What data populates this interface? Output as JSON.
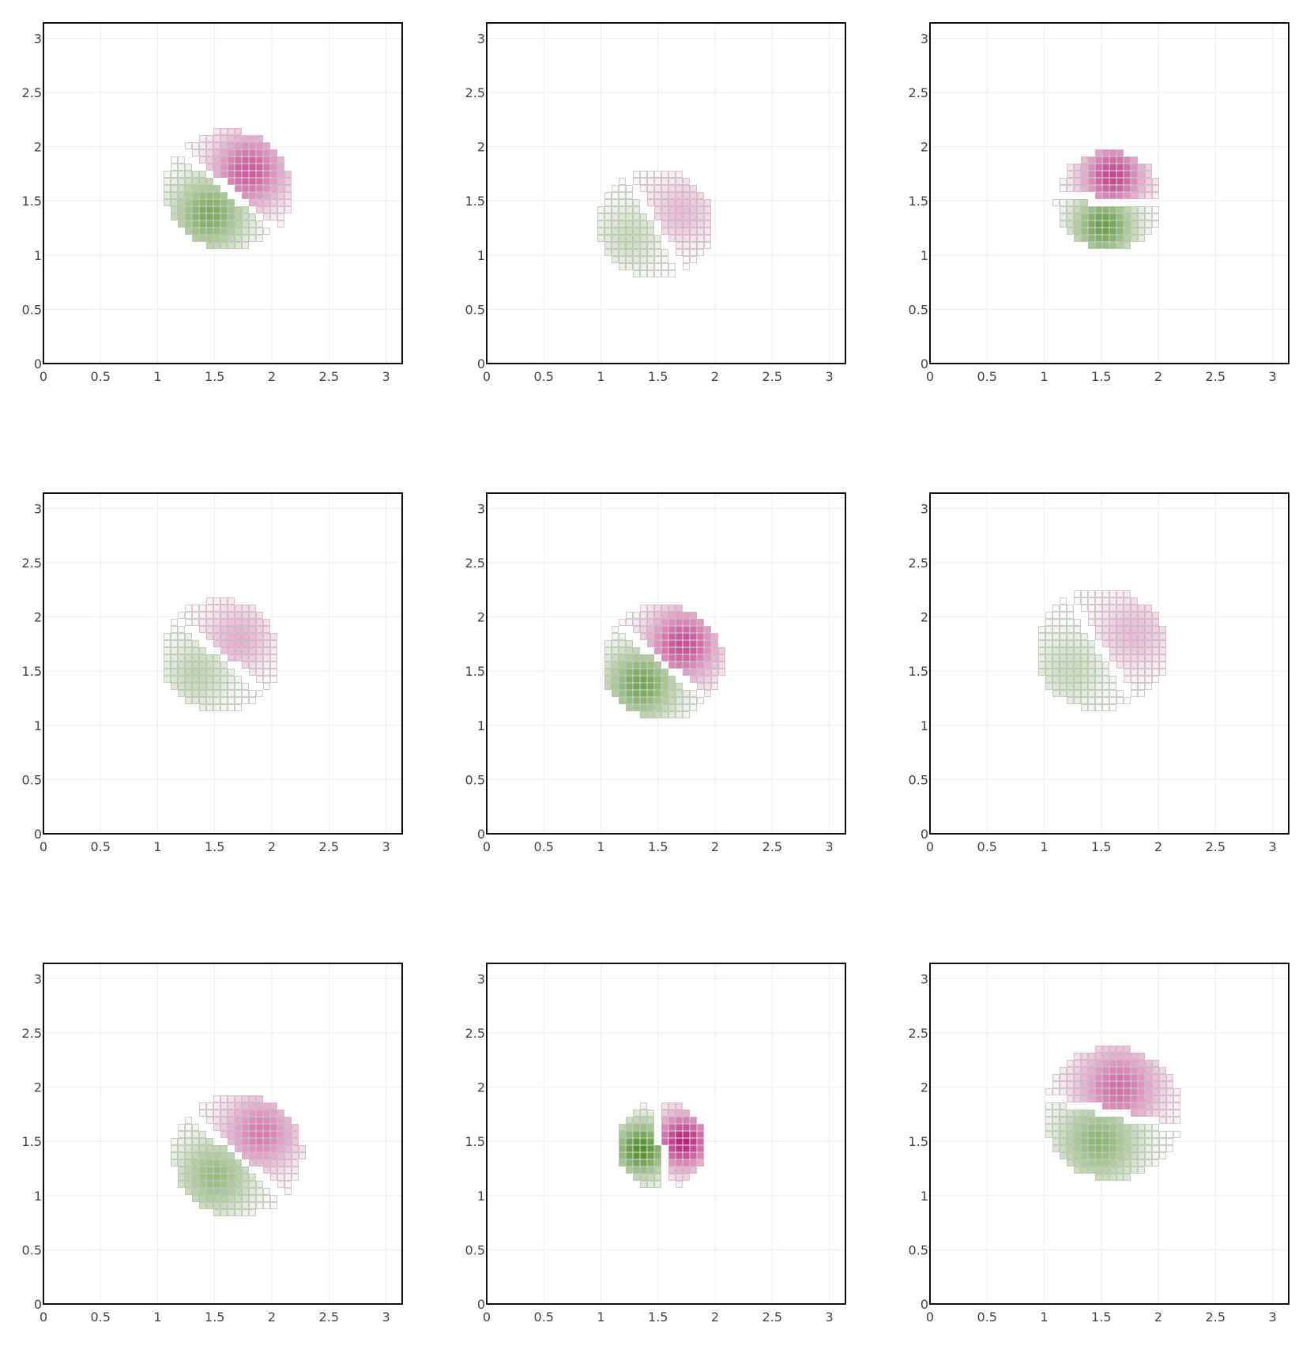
{
  "chart_data": [
    {
      "type": "heatmap",
      "panel": "row-1-col-1",
      "xlim": [
        0,
        3.1416
      ],
      "ylim": [
        0,
        3.1416
      ],
      "xticks": [
        "0",
        "0.5",
        "1",
        "1.5",
        "2",
        "2.5",
        "3"
      ],
      "yticks": [
        "0",
        "0.5",
        "1",
        "1.5",
        "2",
        "2.5",
        "3"
      ],
      "disk": {
        "cx": 1.62,
        "cy": 1.6,
        "rx": 0.56,
        "ry": 0.55
      },
      "split_line_angle_deg": -40,
      "negative_lobe": {
        "x": 1.45,
        "y": 1.38
      },
      "positive_lobe": {
        "x": 1.8,
        "y": 1.78
      },
      "intensity": 0.75
    },
    {
      "type": "heatmap",
      "panel": "row-1-col-2",
      "xlim": [
        0,
        3.1416
      ],
      "ylim": [
        0,
        3.1416
      ],
      "xticks": [
        "0",
        "0.5",
        "1",
        "1.5",
        "2",
        "2.5",
        "3"
      ],
      "yticks": [
        "0",
        "0.5",
        "1",
        "1.5",
        "2",
        "2.5",
        "3"
      ],
      "disk": {
        "cx": 1.48,
        "cy": 1.29,
        "rx": 0.5,
        "ry": 0.5
      },
      "split_line_angle_deg": -60,
      "negative_lobe": {
        "x": 1.25,
        "y": 1.18
      },
      "positive_lobe": {
        "x": 1.7,
        "y": 1.4
      },
      "intensity": 0.3
    },
    {
      "type": "heatmap",
      "panel": "row-1-col-3",
      "xlim": [
        0,
        3.1416
      ],
      "ylim": [
        0,
        3.1416
      ],
      "xticks": [
        "0",
        "0.5",
        "1",
        "1.5",
        "2",
        "2.5",
        "3"
      ],
      "yticks": [
        "0",
        "0.5",
        "1",
        "1.5",
        "2",
        "2.5",
        "3"
      ],
      "disk": {
        "cx": 1.57,
        "cy": 1.5,
        "rx": 0.47,
        "ry": 0.46
      },
      "split_line_angle_deg": -5,
      "negative_lobe": {
        "x": 1.52,
        "y": 1.27
      },
      "positive_lobe": {
        "x": 1.6,
        "y": 1.73
      },
      "intensity": 0.85
    },
    {
      "type": "heatmap",
      "panel": "row-2-col-1",
      "xlim": [
        0,
        3.1416
      ],
      "ylim": [
        0,
        3.1416
      ],
      "xticks": [
        "0",
        "0.5",
        "1",
        "1.5",
        "2",
        "2.5",
        "3"
      ],
      "yticks": [
        "0",
        "0.5",
        "1",
        "1.5",
        "2",
        "2.5",
        "3"
      ],
      "disk": {
        "cx": 1.55,
        "cy": 1.65,
        "rx": 0.52,
        "ry": 0.52
      },
      "split_line_angle_deg": -40,
      "negative_lobe": {
        "x": 1.35,
        "y": 1.48
      },
      "positive_lobe": {
        "x": 1.7,
        "y": 1.8
      },
      "intensity": 0.35
    },
    {
      "type": "heatmap",
      "panel": "row-2-col-2",
      "xlim": [
        0,
        3.1416
      ],
      "ylim": [
        0,
        3.1416
      ],
      "xticks": [
        "0",
        "0.5",
        "1",
        "1.5",
        "2",
        "2.5",
        "3"
      ],
      "yticks": [
        "0",
        "0.5",
        "1",
        "1.5",
        "2",
        "2.5",
        "3"
      ],
      "disk": {
        "cx": 1.54,
        "cy": 1.58,
        "rx": 0.53,
        "ry": 0.53
      },
      "split_line_angle_deg": -40,
      "negative_lobe": {
        "x": 1.35,
        "y": 1.38
      },
      "positive_lobe": {
        "x": 1.72,
        "y": 1.75
      },
      "intensity": 0.8
    },
    {
      "type": "heatmap",
      "panel": "row-2-col-3",
      "xlim": [
        0,
        3.1416
      ],
      "ylim": [
        0,
        3.1416
      ],
      "xticks": [
        "0",
        "0.5",
        "1",
        "1.5",
        "2",
        "2.5",
        "3"
      ],
      "yticks": [
        "0",
        "0.5",
        "1",
        "1.5",
        "2",
        "2.5",
        "3"
      ],
      "disk": {
        "cx": 1.5,
        "cy": 1.7,
        "rx": 0.58,
        "ry": 0.56
      },
      "split_line_angle_deg": -58,
      "negative_lobe": {
        "x": 1.22,
        "y": 1.52
      },
      "positive_lobe": {
        "x": 1.78,
        "y": 1.85
      },
      "intensity": 0.3
    },
    {
      "type": "heatmap",
      "panel": "row-3-col-1",
      "xlim": [
        0,
        3.1416
      ],
      "ylim": [
        0,
        3.1416
      ],
      "xticks": [
        "0",
        "0.5",
        "1",
        "1.5",
        "2",
        "2.5",
        "3"
      ],
      "yticks": [
        "0",
        "0.5",
        "1",
        "1.5",
        "2",
        "2.5",
        "3"
      ],
      "disk": {
        "cx": 1.7,
        "cy": 1.37,
        "rx": 0.57,
        "ry": 0.56
      },
      "split_line_angle_deg": -42,
      "negative_lobe": {
        "x": 1.5,
        "y": 1.18
      },
      "positive_lobe": {
        "x": 1.9,
        "y": 1.58
      },
      "intensity": 0.6
    },
    {
      "type": "heatmap",
      "panel": "row-3-col-2",
      "xlim": [
        0,
        3.1416
      ],
      "ylim": [
        0,
        3.1416
      ],
      "xticks": [
        "0",
        "0.5",
        "1",
        "1.5",
        "2",
        "2.5",
        "3"
      ],
      "yticks": [
        "0",
        "0.5",
        "1",
        "1.5",
        "2",
        "2.5",
        "3"
      ],
      "disk": {
        "cx": 1.53,
        "cy": 1.46,
        "rx": 0.39,
        "ry": 0.41
      },
      "split_line_angle_deg": -80,
      "negative_lobe": {
        "x": 1.35,
        "y": 1.43
      },
      "positive_lobe": {
        "x": 1.72,
        "y": 1.5
      },
      "intensity": 1.0
    },
    {
      "type": "heatmap",
      "panel": "row-3-col-3",
      "xlim": [
        0,
        3.1416
      ],
      "ylim": [
        0,
        3.1416
      ],
      "xticks": [
        "0",
        "0.5",
        "1",
        "1.5",
        "2",
        "2.5",
        "3"
      ],
      "yticks": [
        "0",
        "0.5",
        "1",
        "1.5",
        "2",
        "2.5",
        "3"
      ],
      "disk": {
        "cx": 1.6,
        "cy": 1.76,
        "rx": 0.61,
        "ry": 0.61
      },
      "split_line_angle_deg": -13,
      "negative_lobe": {
        "x": 1.48,
        "y": 1.5
      },
      "positive_lobe": {
        "x": 1.65,
        "y": 2.0
      },
      "intensity": 0.65
    }
  ],
  "colors": {
    "negative": "#4d9221",
    "positive": "#c51b7d",
    "grid_cell_outline": "#9a9a9a",
    "axis_frame": "#111111",
    "gridline": "#eeeeee",
    "tick_text": "#444444"
  }
}
